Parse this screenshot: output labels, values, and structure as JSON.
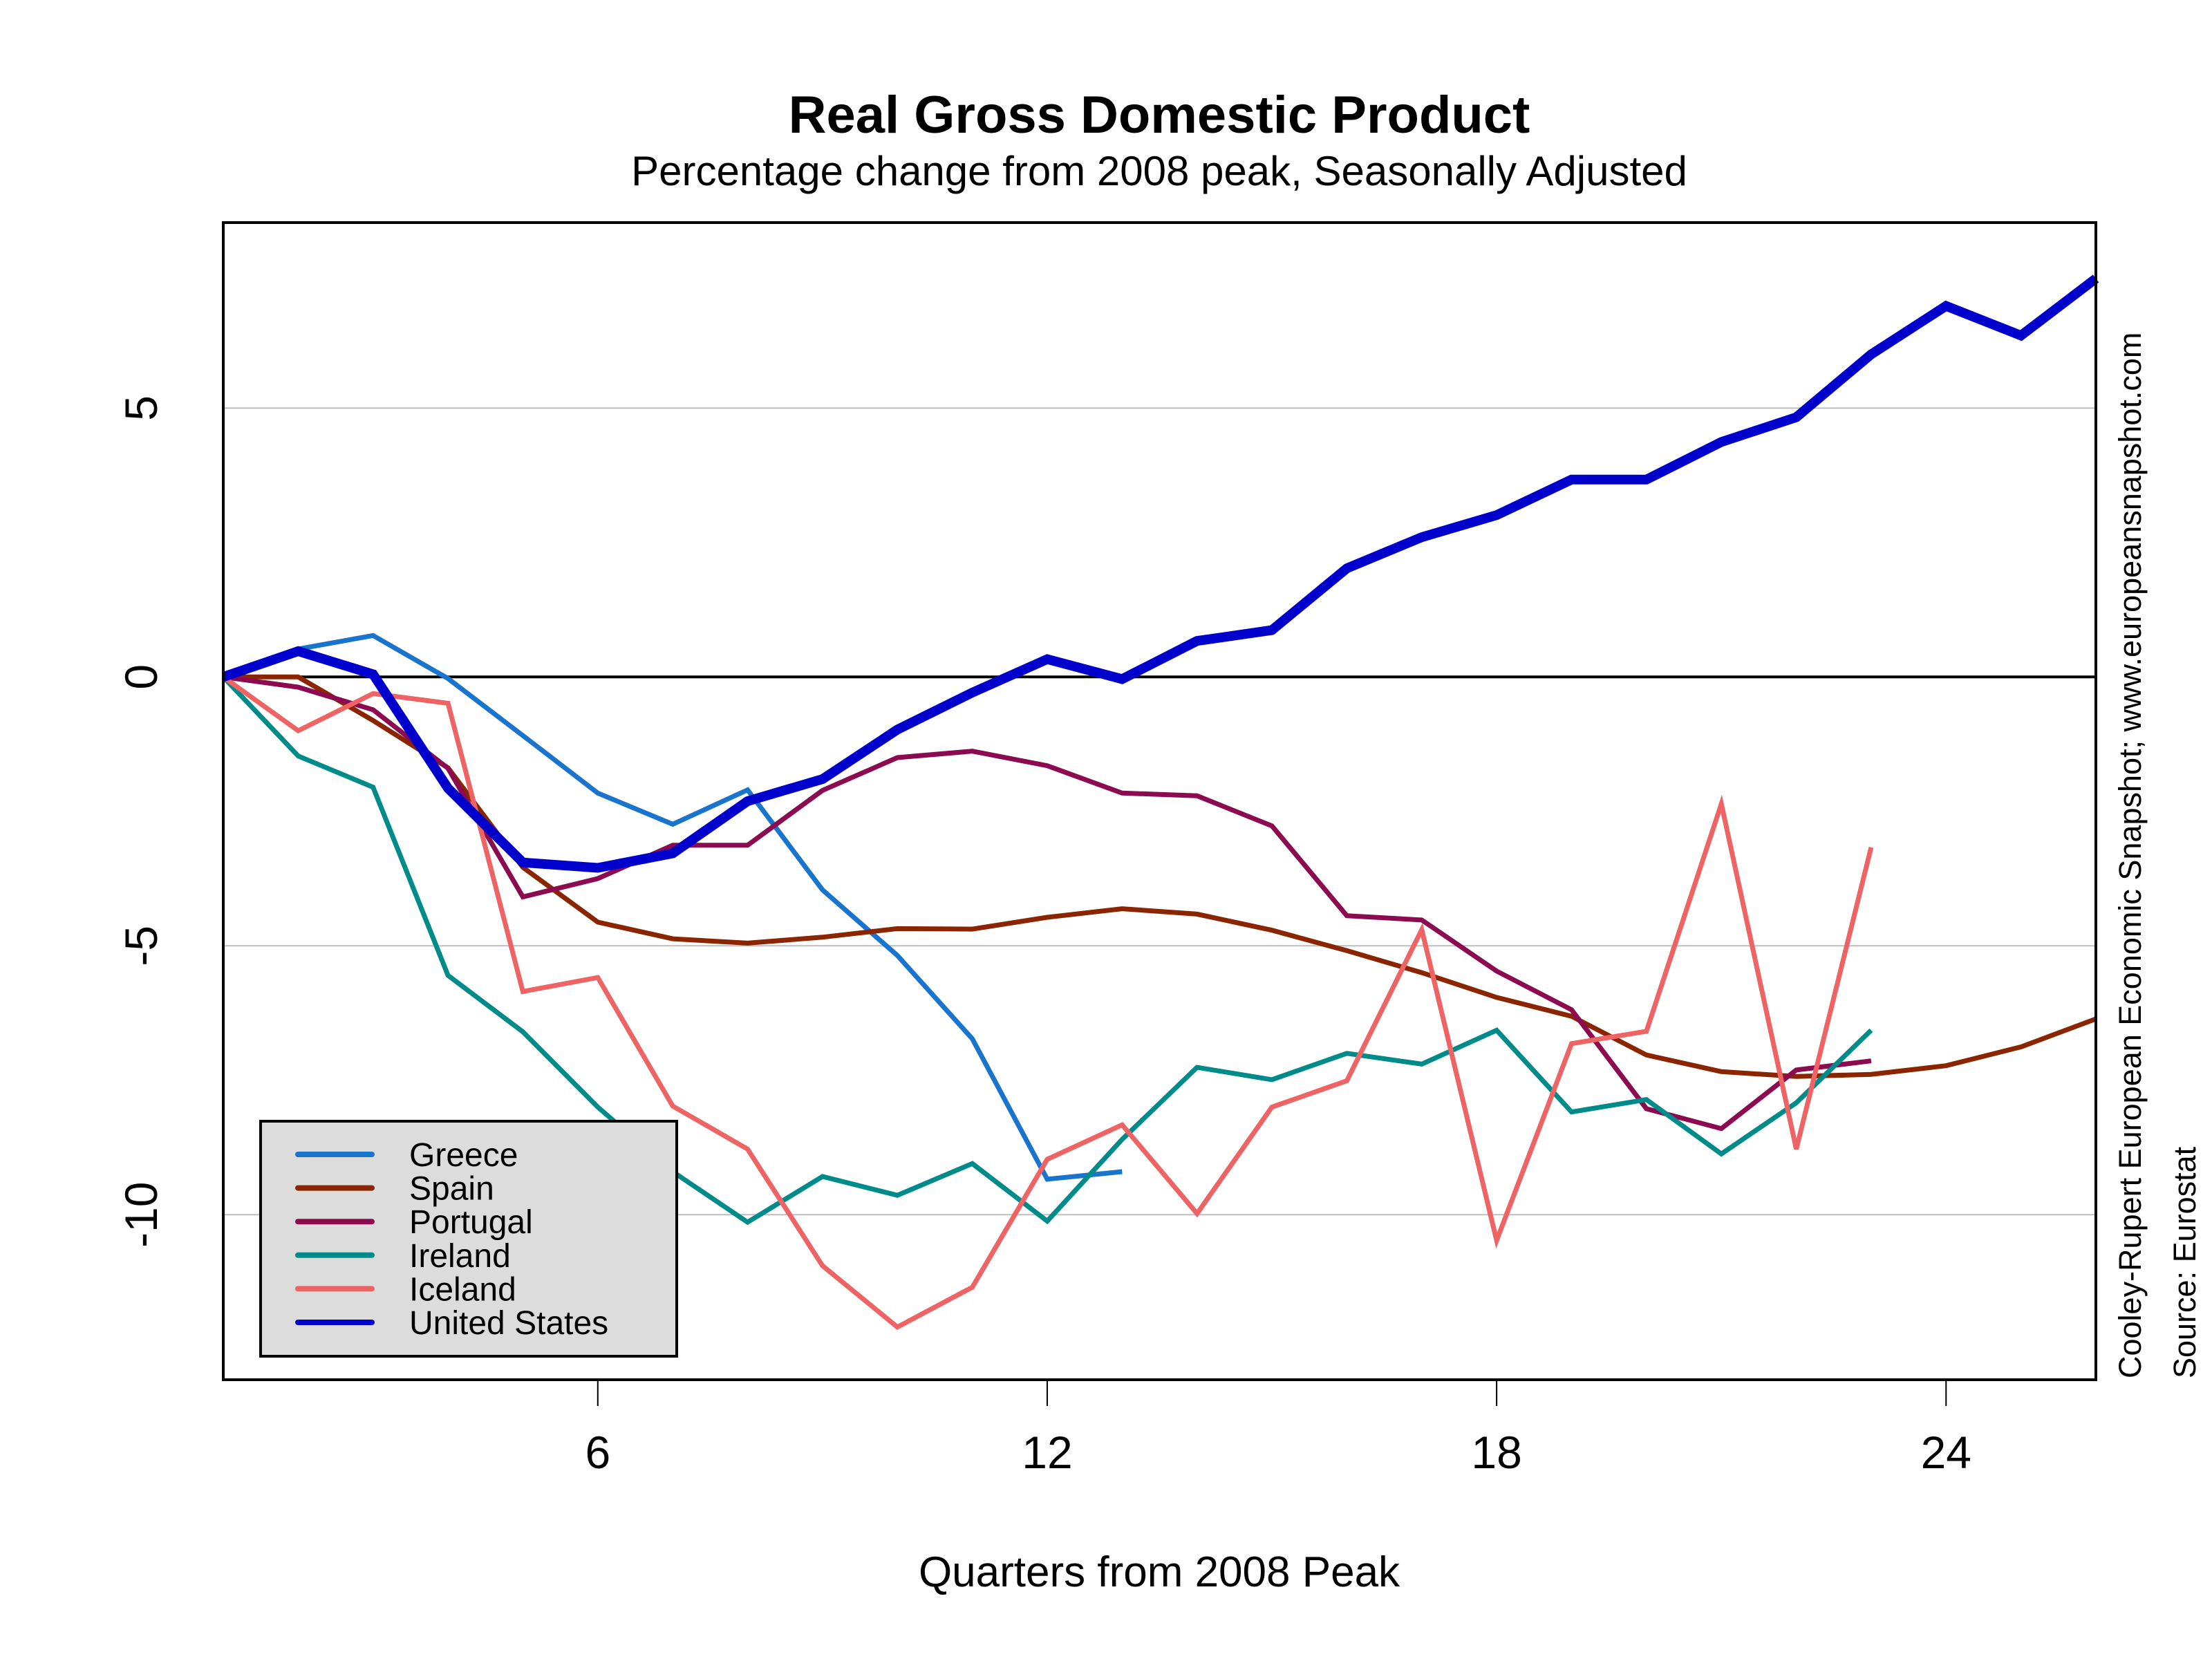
{
  "chart_data": {
    "type": "line",
    "title": "Real Gross Domestic Product",
    "subtitle": "Percentage change from 2008 peak, Seasonally Adjusted",
    "xlabel": "Quarters from 2008 Peak",
    "ylabel": "",
    "xlim": [
      1,
      26
    ],
    "ylim": [
      -13.07,
      8.45
    ],
    "xticks": [
      6,
      12,
      18,
      24
    ],
    "xtick_labels": [
      "6",
      "12",
      "18",
      "24"
    ],
    "yticks": [
      5,
      0,
      -5,
      -10
    ],
    "ytick_labels": [
      "5",
      "0",
      "-5",
      "-10"
    ],
    "grid": "horizontal",
    "zero_line": true,
    "legend_position": "bottom-left",
    "series": [
      {
        "name": "Greece",
        "color": "#1874CD",
        "emphasis": false,
        "x": [
          1,
          2,
          3,
          4,
          5,
          6,
          7,
          8,
          9,
          10,
          11,
          12,
          13
        ],
        "values": [
          0,
          0.52,
          0.77,
          -0.03,
          -1.09,
          -2.16,
          -2.74,
          -2.1,
          -3.96,
          -5.18,
          -6.73,
          -9.34,
          -9.2
        ]
      },
      {
        "name": "Spain",
        "color": "#8B2500",
        "emphasis": false,
        "x": [
          1,
          2,
          3,
          4,
          5,
          6,
          7,
          8,
          9,
          10,
          11,
          12,
          13,
          14,
          15,
          16,
          17,
          18,
          19,
          20,
          21,
          22,
          23,
          24,
          25,
          26
        ],
        "values": [
          0,
          0.0,
          -0.81,
          -1.69,
          -3.54,
          -4.56,
          -4.87,
          -4.95,
          -4.84,
          -4.68,
          -4.69,
          -4.47,
          -4.31,
          -4.41,
          -4.71,
          -5.09,
          -5.5,
          -5.96,
          -6.31,
          -7.03,
          -7.34,
          -7.43,
          -7.39,
          -7.23,
          -6.88,
          -6.36
        ]
      },
      {
        "name": "Portugal",
        "color": "#8B0A50",
        "emphasis": false,
        "x": [
          1,
          2,
          3,
          4,
          5,
          6,
          7,
          8,
          9,
          10,
          11,
          12,
          13,
          14,
          15,
          16,
          17,
          18,
          19,
          20,
          21,
          22,
          23
        ],
        "values": [
          0,
          -0.19,
          -0.61,
          -1.7,
          -4.09,
          -3.75,
          -3.13,
          -3.13,
          -2.11,
          -1.5,
          -1.38,
          -1.65,
          -2.16,
          -2.21,
          -2.77,
          -4.44,
          -4.52,
          -5.47,
          -6.19,
          -8.03,
          -8.4,
          -7.31,
          -7.14
        ]
      },
      {
        "name": "Ireland",
        "color": "#008B8B",
        "emphasis": false,
        "x": [
          1,
          2,
          3,
          4,
          5,
          6,
          7,
          8,
          9,
          10,
          11,
          12,
          13,
          14,
          15,
          16,
          17,
          18,
          19,
          20,
          21,
          22,
          23
        ],
        "values": [
          0,
          -1.47,
          -2.05,
          -5.55,
          -6.6,
          -8.0,
          -9.2,
          -10.14,
          -9.29,
          -9.64,
          -9.05,
          -10.12,
          -8.6,
          -7.26,
          -7.49,
          -7.0,
          -7.2,
          -6.57,
          -8.09,
          -7.86,
          -8.87,
          -7.92,
          -6.57
        ]
      },
      {
        "name": "Iceland",
        "color": "#EE6363",
        "emphasis": false,
        "x": [
          1,
          2,
          3,
          4,
          5,
          6,
          7,
          8,
          9,
          10,
          11,
          12,
          13,
          14,
          15,
          16,
          17,
          18,
          19,
          20,
          21,
          22,
          23
        ],
        "values": [
          0,
          -1.0,
          -0.31,
          -0.49,
          -5.85,
          -5.59,
          -7.98,
          -8.78,
          -10.95,
          -12.09,
          -11.35,
          -8.97,
          -8.33,
          -9.98,
          -8.0,
          -7.51,
          -4.7,
          -10.48,
          -6.82,
          -6.59,
          -2.36,
          -8.78,
          -3.17
        ]
      },
      {
        "name": "United States",
        "color": "#0000CD",
        "emphasis": true,
        "x": [
          1,
          2,
          3,
          4,
          5,
          6,
          7,
          8,
          9,
          10,
          11,
          12,
          13,
          14,
          15,
          16,
          17,
          18,
          19,
          20,
          21,
          22,
          23,
          24,
          25,
          26
        ],
        "values": [
          0,
          0.48,
          0.05,
          -2.07,
          -3.45,
          -3.55,
          -3.28,
          -2.31,
          -1.9,
          -0.98,
          -0.29,
          0.33,
          -0.04,
          0.67,
          0.87,
          2.02,
          2.6,
          3.01,
          3.67,
          3.67,
          4.37,
          4.83,
          6.0,
          6.9,
          6.35,
          7.41
        ]
      }
    ],
    "annotations": {
      "credit": "Cooley-Rupert European Economic Snapshot; www.europeansnapshot.com",
      "source": "Source: Eurostat"
    },
    "legend_background": "#DCDCDC",
    "grid_color": "#BEBEBE"
  }
}
